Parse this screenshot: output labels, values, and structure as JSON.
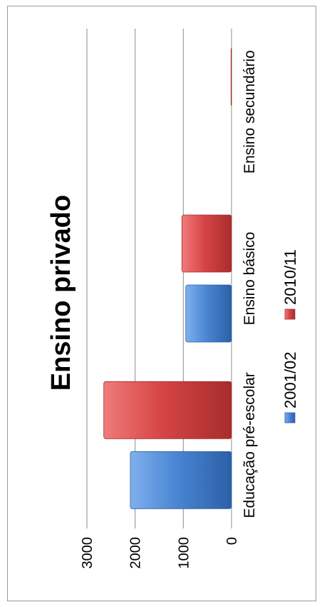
{
  "chart_data": {
    "type": "bar",
    "title": "Ensino privado",
    "categories": [
      "Educação pré-escolar",
      "Ensino básico",
      "Ensino secundário"
    ],
    "series": [
      {
        "name": "2001/02",
        "values": [
          2100,
          950,
          0
        ],
        "color": "#4a86d4"
      },
      {
        "name": "2010/11",
        "values": [
          2650,
          1030,
          10
        ],
        "color": "#d64545"
      }
    ],
    "y_ticks": [
      "0",
      "1000",
      "2000",
      "3000"
    ],
    "ylim": [
      0,
      3000
    ],
    "grid": true,
    "legend": "bottom"
  }
}
